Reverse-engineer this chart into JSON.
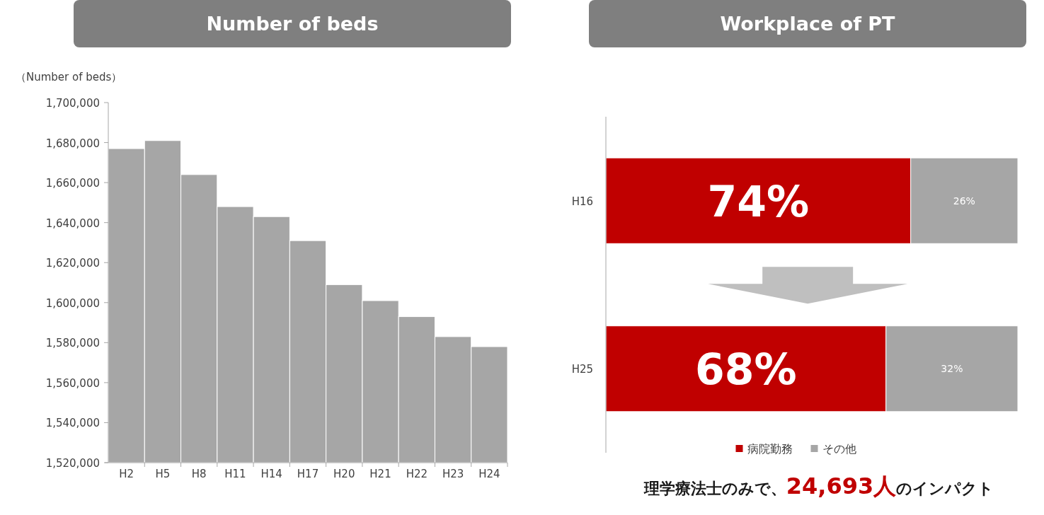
{
  "chart_data": [
    {
      "type": "bar",
      "title": "Number of beds",
      "ylabel": "（Number of beds）",
      "categories": [
        "H2",
        "H5",
        "H8",
        "H11",
        "H14",
        "H17",
        "H20",
        "H21",
        "H22",
        "H23",
        "H24"
      ],
      "values": [
        1677000,
        1681000,
        1664000,
        1648000,
        1643000,
        1631000,
        1609000,
        1601000,
        1593000,
        1583000,
        1578000
      ],
      "color": "#a6a6a6",
      "ylim": [
        1520000,
        1700000
      ],
      "yticks": [
        {
          "value": 1520000,
          "label": "1,520,000"
        },
        {
          "value": 1540000,
          "label": "1,540,000"
        },
        {
          "value": 1560000,
          "label": "1,560,000"
        },
        {
          "value": 1580000,
          "label": "1,580,000"
        },
        {
          "value": 1600000,
          "label": "1,600,000"
        },
        {
          "value": 1620000,
          "label": "1,620,000"
        },
        {
          "value": 1640000,
          "label": "1,640,000"
        },
        {
          "value": 1660000,
          "label": "1,660,000"
        },
        {
          "value": 1680000,
          "label": "1,680,000"
        },
        {
          "value": 1700000,
          "label": "1,700,000"
        }
      ],
      "grid": false
    },
    {
      "type": "bar",
      "title": "Workplace of PT",
      "orientation": "horizontal",
      "stacked": true,
      "categories": [
        "H16",
        "H25"
      ],
      "series": [
        {
          "name": "病院勤務",
          "color": "#c00000",
          "values": [
            74,
            68
          ],
          "value_labels": [
            "74%",
            "68%"
          ]
        },
        {
          "name": "その他",
          "color": "#a6a6a6",
          "values": [
            26,
            32
          ],
          "value_labels": [
            "26%",
            "32%"
          ]
        }
      ],
      "tick_labels": "y",
      "legend": "bottom",
      "grid": false,
      "annotations": [
        "理学療法士のみで、24,693人のインパクト"
      ]
    }
  ]
}
